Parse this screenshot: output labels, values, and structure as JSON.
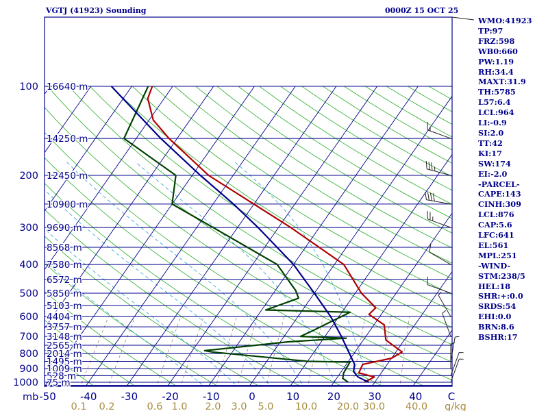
{
  "header": {
    "station": "VGTJ (41923) Sounding",
    "time": "0000Z 15 OCT 25"
  },
  "chart_data": {
    "type": "line",
    "title": "VGTJ (41923) Sounding",
    "subtitle": "0000Z 15 OCT 25",
    "pressure_levels": [
      100,
      200,
      300,
      400,
      500,
      600,
      700,
      800,
      900,
      1000
    ],
    "pressure_labels": [
      "100",
      "200",
      "300",
      "400",
      "500",
      "600",
      "700",
      "800",
      "900",
      "1000"
    ],
    "x_axis_unit": "mb",
    "x_ticks": [
      -50,
      -40,
      -30,
      -20,
      -10,
      0,
      10,
      20,
      30,
      40,
      "C"
    ],
    "mixing_ratio_labels": [
      "0.1",
      "0.2",
      "0.6",
      "1.0",
      "2.0",
      "3.0",
      "5.0",
      "10.0",
      "20.0",
      "30.0",
      "40.0",
      "g/kg"
    ],
    "height_labels": [
      {
        "p": 100,
        "label": "16640 m"
      },
      {
        "p": 150,
        "label": "14250 m"
      },
      {
        "p": 200,
        "label": "12450 m"
      },
      {
        "p": 250,
        "label": "10900 m"
      },
      {
        "p": 300,
        "label": "9690 m"
      },
      {
        "p": 350,
        "label": "8568 m"
      },
      {
        "p": 400,
        "label": "7580 m"
      },
      {
        "p": 450,
        "label": "6572 m"
      },
      {
        "p": 500,
        "label": "5850 m"
      },
      {
        "p": 550,
        "label": "5103 m"
      },
      {
        "p": 600,
        "label": "4404 m"
      },
      {
        "p": 650,
        "label": "3757 m"
      },
      {
        "p": 700,
        "label": "3148 m"
      },
      {
        "p": 750,
        "label": "2565 m"
      },
      {
        "p": 800,
        "label": "2014 m"
      },
      {
        "p": 850,
        "label": "1495 m"
      },
      {
        "p": 900,
        "label": "1009 m"
      },
      {
        "p": 950,
        "label": "528 m"
      },
      {
        "p": 1000,
        "label": "75 m"
      }
    ],
    "series": [
      {
        "name": "Temperature",
        "color": "#b00000",
        "points": [
          {
            "p": 1000,
            "t": 27.5
          },
          {
            "p": 960,
            "t": 29
          },
          {
            "p": 930,
            "t": 24.5
          },
          {
            "p": 870,
            "t": 24
          },
          {
            "p": 830,
            "t": 30
          },
          {
            "p": 790,
            "t": 31.5
          },
          {
            "p": 720,
            "t": 25.5
          },
          {
            "p": 640,
            "t": 22.5
          },
          {
            "p": 590,
            "t": 17
          },
          {
            "p": 560,
            "t": 17.5
          },
          {
            "p": 500,
            "t": 11.5
          },
          {
            "p": 400,
            "t": 2.3
          },
          {
            "p": 300,
            "t": -17
          },
          {
            "p": 200,
            "t": -46
          },
          {
            "p": 150,
            "t": -62
          },
          {
            "p": 130,
            "t": -69
          },
          {
            "p": 110,
            "t": -74
          },
          {
            "p": 100,
            "t": -75
          }
        ]
      },
      {
        "name": "Dewpoint",
        "color": "#004000",
        "points": [
          {
            "p": 1000,
            "t": 23.5
          },
          {
            "p": 970,
            "t": 21.5
          },
          {
            "p": 930,
            "t": 20.8
          },
          {
            "p": 855,
            "t": 20.5
          },
          {
            "p": 850,
            "t": 10
          },
          {
            "p": 790,
            "t": -15
          },
          {
            "p": 782,
            "t": -17
          },
          {
            "p": 730,
            "t": 2
          },
          {
            "p": 710,
            "t": 15.5
          },
          {
            "p": 700,
            "t": 4
          },
          {
            "p": 670,
            "t": 6
          },
          {
            "p": 580,
            "t": 12
          },
          {
            "p": 570,
            "t": -9
          },
          {
            "p": 520,
            "t": -3
          },
          {
            "p": 490,
            "t": -5
          },
          {
            "p": 400,
            "t": -14
          },
          {
            "p": 300,
            "t": -36
          },
          {
            "p": 250,
            "t": -50
          },
          {
            "p": 200,
            "t": -54
          },
          {
            "p": 150,
            "t": -73
          },
          {
            "p": 100,
            "t": -76
          }
        ]
      },
      {
        "name": "Parcel",
        "color": "#00008b",
        "points": [
          {
            "p": 1000,
            "t": 28.5
          },
          {
            "p": 960,
            "t": 25
          },
          {
            "p": 920,
            "t": 23
          },
          {
            "p": 870,
            "t": 22
          },
          {
            "p": 700,
            "t": 14
          },
          {
            "p": 600,
            "t": 8
          },
          {
            "p": 500,
            "t": 0
          },
          {
            "p": 400,
            "t": -10
          },
          {
            "p": 300,
            "t": -25
          },
          {
            "p": 250,
            "t": -35
          },
          {
            "p": 200,
            "t": -48
          },
          {
            "p": 150,
            "t": -64
          },
          {
            "p": 100,
            "t": -85
          }
        ]
      }
    ],
    "wind_barbs": [
      {
        "p": 150,
        "dir": 290,
        "kt": 15
      },
      {
        "p": 200,
        "dir": 285,
        "kt": 35
      },
      {
        "p": 250,
        "dir": 280,
        "kt": 40
      },
      {
        "p": 300,
        "dir": 290,
        "kt": 25
      },
      {
        "p": 400,
        "dir": 300,
        "kt": 10
      },
      {
        "p": 500,
        "dir": 290,
        "kt": 10
      },
      {
        "p": 600,
        "dir": 330,
        "kt": 5
      },
      {
        "p": 700,
        "dir": 340,
        "kt": 5
      },
      {
        "p": 850,
        "dir": 10,
        "kt": 5
      },
      {
        "p": 900,
        "dir": 360,
        "kt": 5
      },
      {
        "p": 950,
        "dir": 20,
        "kt": 5
      },
      {
        "p": 1000,
        "dir": 20,
        "kt": 5
      }
    ],
    "params": [
      "WMO:41923",
      "TP:97",
      "FRZ:598",
      "WB0:660",
      "PW:1.19",
      "RH:34.4",
      "MAXT:31.9",
      "TH:5785",
      "L57:6.4",
      "LCL:964",
      "LI:-0.9",
      "SI:2.0",
      "TT:42",
      "KI:17",
      "SW:174",
      "EI:-2.0",
      "-PARCEL-",
      "CAPE:143",
      "CINH:309",
      "LCL:876",
      "CAP:5.6",
      "LFC:641",
      "EL:561",
      "MPL:251",
      "-WIND-",
      "STM:238/5",
      "HEL:18",
      "SHR:+:0.0",
      "SRDS:54",
      "EHI:0.0",
      "BRN:8.6",
      "BSHR:17"
    ]
  }
}
